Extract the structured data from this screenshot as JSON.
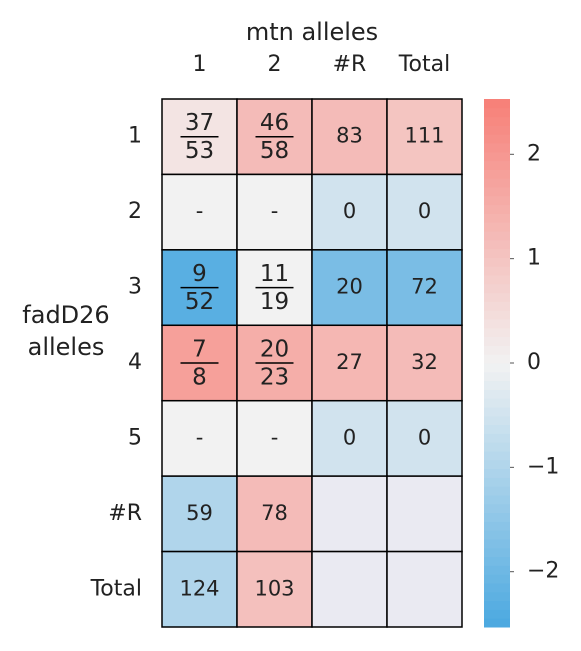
{
  "chart_data": {
    "type": "heatmap",
    "xlabel": "mtn alleles",
    "ylabel": [
      "fadD26",
      "alleles"
    ],
    "columns": [
      "1",
      "2",
      "#R",
      "Total"
    ],
    "rows": [
      "1",
      "2",
      "3",
      "4",
      "5",
      "#R",
      "Total"
    ],
    "cell_labels": [
      [
        {
          "num": "37",
          "den": "53"
        },
        {
          "num": "46",
          "den": "58"
        },
        "83",
        "111"
      ],
      [
        "-",
        "-",
        "0",
        "0"
      ],
      [
        {
          "num": "9",
          "den": "52"
        },
        {
          "num": "11",
          "den": "19"
        },
        "20",
        "72"
      ],
      [
        {
          "num": "7",
          "den": "8"
        },
        {
          "num": "20",
          "den": "23"
        },
        "27",
        "32"
      ],
      [
        "-",
        "-",
        "0",
        "0"
      ],
      [
        "59",
        "78",
        null,
        null
      ],
      [
        "124",
        "103",
        null,
        null
      ]
    ],
    "values": [
      [
        0.3,
        1.2,
        1.2,
        1.0
      ],
      [
        0,
        0,
        -0.5,
        -0.5
      ],
      [
        -2.3,
        0,
        -1.8,
        -1.8
      ],
      [
        1.8,
        1.5,
        1.3,
        1.2
      ],
      [
        0,
        0,
        -0.5,
        -0.5
      ],
      [
        -1.0,
        1.2,
        null,
        null
      ],
      [
        -1.0,
        1.1,
        null,
        null
      ]
    ],
    "colormap": [
      "#4aa8e0",
      "#f2f2f2",
      "#f77f77"
    ],
    "missing_color": "#eaeaf2",
    "zlim": [
      -2.53,
      2.53
    ],
    "zticks": [
      {
        "value": -2,
        "label": "−2"
      },
      {
        "value": -1,
        "label": "−1"
      },
      0,
      1,
      2
    ]
  }
}
